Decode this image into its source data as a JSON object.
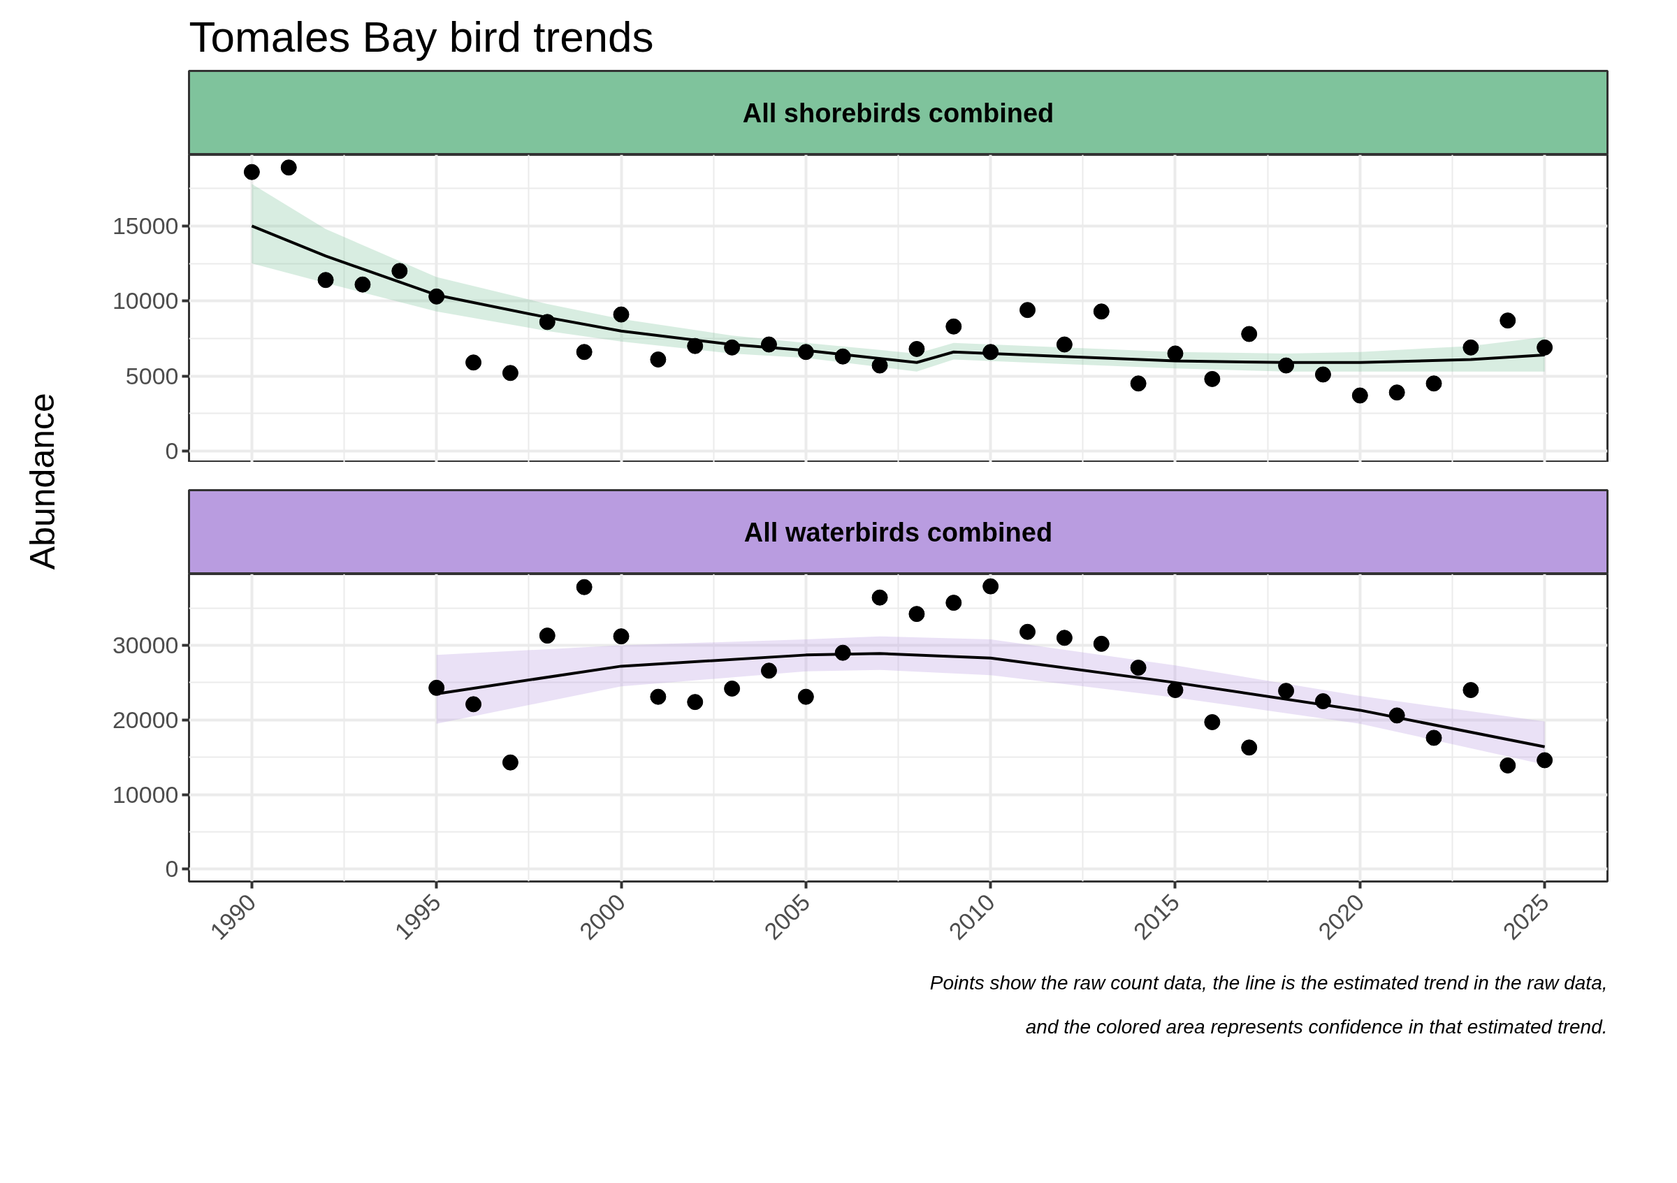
{
  "chart_data": [
    {
      "type": "scatter",
      "title": "Tomales Bay bird trends",
      "subtitle": "All shorebirds combined",
      "ylabel": "Abundance",
      "x": [
        1990,
        1991,
        1992,
        1993,
        1994,
        1995,
        1996,
        1997,
        1998,
        1999,
        2000,
        2001,
        2002,
        2003,
        2004,
        2005,
        2006,
        2007,
        2008,
        2009,
        2010,
        2011,
        2012,
        2013,
        2014,
        2015,
        2016,
        2017,
        2018,
        2019,
        2020,
        2021,
        2022,
        2023,
        2024,
        2025
      ],
      "series": [
        {
          "type": "line",
          "marker": "none",
          "color": "#000000",
          "x": [
            1990,
            1992,
            1995,
            1998,
            2000,
            2003,
            2005,
            2008,
            2009,
            2012,
            2015,
            2018,
            2020,
            2023,
            2025
          ],
          "values": [
            15000,
            13000,
            10400,
            8900,
            8000,
            7100,
            6700,
            5900,
            6600,
            6300,
            6000,
            5900,
            5900,
            6100,
            6400
          ],
          "lower": [
            12500,
            11200,
            9300,
            8000,
            7300,
            6500,
            6200,
            5300,
            6100,
            5800,
            5500,
            5300,
            5300,
            5300,
            5300
          ],
          "upper": [
            17800,
            14800,
            11600,
            9800,
            8800,
            7700,
            7200,
            6500,
            7200,
            6900,
            6600,
            6500,
            6600,
            7000,
            7600
          ]
        },
        {
          "color": "#000000",
          "values": [
            18600,
            18900,
            11400,
            11100,
            12000,
            10300,
            5900,
            5200,
            8600,
            6600,
            9100,
            6100,
            7000,
            6900,
            7100,
            6600,
            6300,
            5700,
            6800,
            8300,
            6600,
            9400,
            7100,
            9300,
            4500,
            6500,
            4800,
            7800,
            5700,
            5100,
            3700,
            3900,
            4500,
            6900,
            8700,
            6900
          ]
        }
      ],
      "colors": [
        "#7fc39c"
      ],
      "xlim": [
        1988.3,
        2026.7
      ],
      "xticks": [
        1990,
        1995,
        2000,
        2005,
        2010,
        2015,
        2020,
        2025
      ],
      "ylim": [
        -750,
        19750
      ],
      "yticks": [
        0,
        5000,
        10000,
        15000
      ],
      "tick_labels": "y",
      "grid": true,
      "marker": "circle",
      "line_style": "solid"
    },
    {
      "type": "scatter",
      "subtitle": "All waterbirds combined",
      "x": [
        1995,
        1996,
        1997,
        1998,
        1999,
        2000,
        2001,
        2002,
        2003,
        2004,
        2005,
        2006,
        2007,
        2008,
        2009,
        2010,
        2011,
        2012,
        2013,
        2014,
        2015,
        2016,
        2017,
        2018,
        2019,
        2020,
        2021,
        2022,
        2023,
        2024,
        2025
      ],
      "series": [
        {
          "type": "line",
          "marker": "none",
          "color": "#000000",
          "x": [
            1995,
            2000,
            2005,
            2007,
            2010,
            2015,
            2020,
            2025
          ],
          "values": [
            23500,
            27200,
            28700,
            28900,
            28300,
            25000,
            21300,
            16400
          ],
          "lower": [
            19500,
            24500,
            26500,
            26700,
            26000,
            23000,
            19500,
            14000
          ],
          "upper": [
            28700,
            30000,
            30800,
            31200,
            30800,
            27300,
            23200,
            19800
          ]
        },
        {
          "color": "#000000",
          "values": [
            24300,
            22100,
            14300,
            31300,
            37800,
            31200,
            23100,
            22400,
            24200,
            26600,
            23100,
            29000,
            36400,
            34200,
            35700,
            37900,
            31800,
            31000,
            30200,
            27000,
            24000,
            19700,
            16300,
            23900,
            22500,
            null,
            20600,
            17600,
            24000,
            13900,
            14600
          ]
        }
      ],
      "colors": [
        "#b99ce0"
      ],
      "xlim": [
        1988.3,
        2026.7
      ],
      "xticks": [
        1990,
        1995,
        2000,
        2005,
        2010,
        2015,
        2020,
        2025
      ],
      "ylim": [
        -1650,
        39550
      ],
      "yticks": [
        0,
        10000,
        20000,
        30000
      ],
      "grid": true,
      "marker": "circle",
      "line_style": "solid",
      "annotations": [
        "Points show the raw count data, the line is the estimated trend in the raw data,",
        "and the colored area represents confidence in that estimated trend."
      ]
    }
  ]
}
